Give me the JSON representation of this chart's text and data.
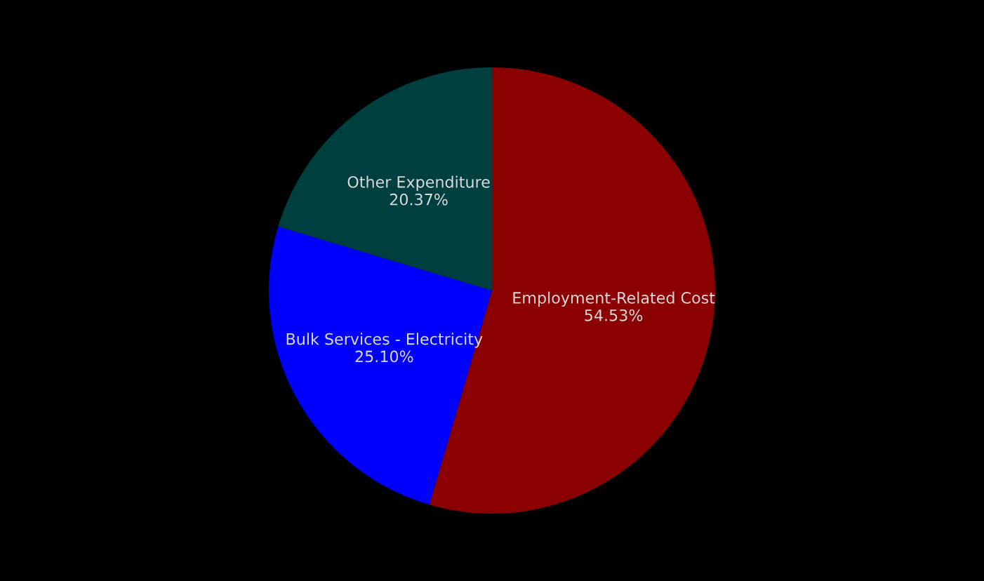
{
  "chart_data": {
    "type": "pie",
    "categories": [
      "Employment-Related Cost",
      "Bulk Services - Electricity",
      "Other Expenditure"
    ],
    "values": [
      54.53,
      25.1,
      20.37
    ],
    "value_labels": [
      "54.53%",
      "25.10%",
      "20.37%"
    ],
    "colors": [
      "#8b0000",
      "#0000ff",
      "#003f3f"
    ]
  }
}
